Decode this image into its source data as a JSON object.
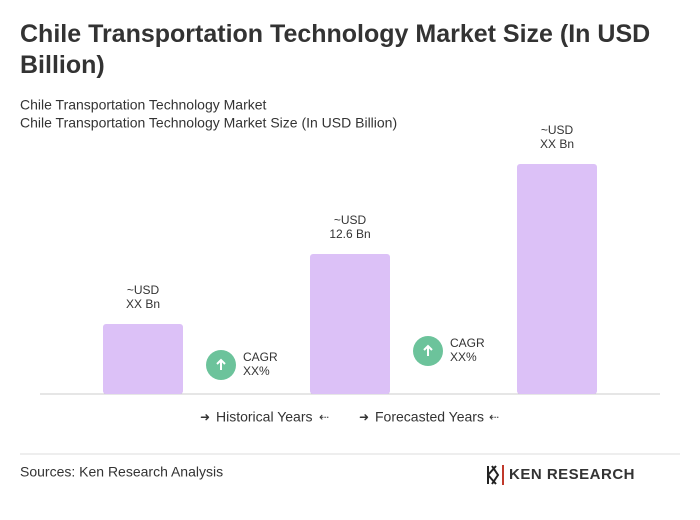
{
  "chart_data": {
    "type": "bar",
    "title": "Chile Transportation Technology Market Size (In USD Billion)",
    "subtitles": [
      "Chile Transportation Technology Market",
      "Chile Transportation Technology Market Size (In USD Billion)"
    ],
    "categories": [
      null,
      null,
      null
    ],
    "values": [
      6.3,
      12.6,
      20.7
    ],
    "value_labels": [
      [
        "~USD",
        "XX Bn"
      ],
      [
        "~USD",
        "12.6 Bn"
      ],
      [
        "~USD",
        "XX Bn"
      ]
    ],
    "color": "#dcc1f7",
    "annotations": [
      [
        "CAGR",
        "XX%"
      ],
      [
        "CAGR",
        "XX%"
      ]
    ],
    "legend": [
      "Historical Years",
      "Forecasted Years"
    ],
    "source": "Sources: Ken Research Analysis",
    "logo": "KEN RESEARCH"
  }
}
